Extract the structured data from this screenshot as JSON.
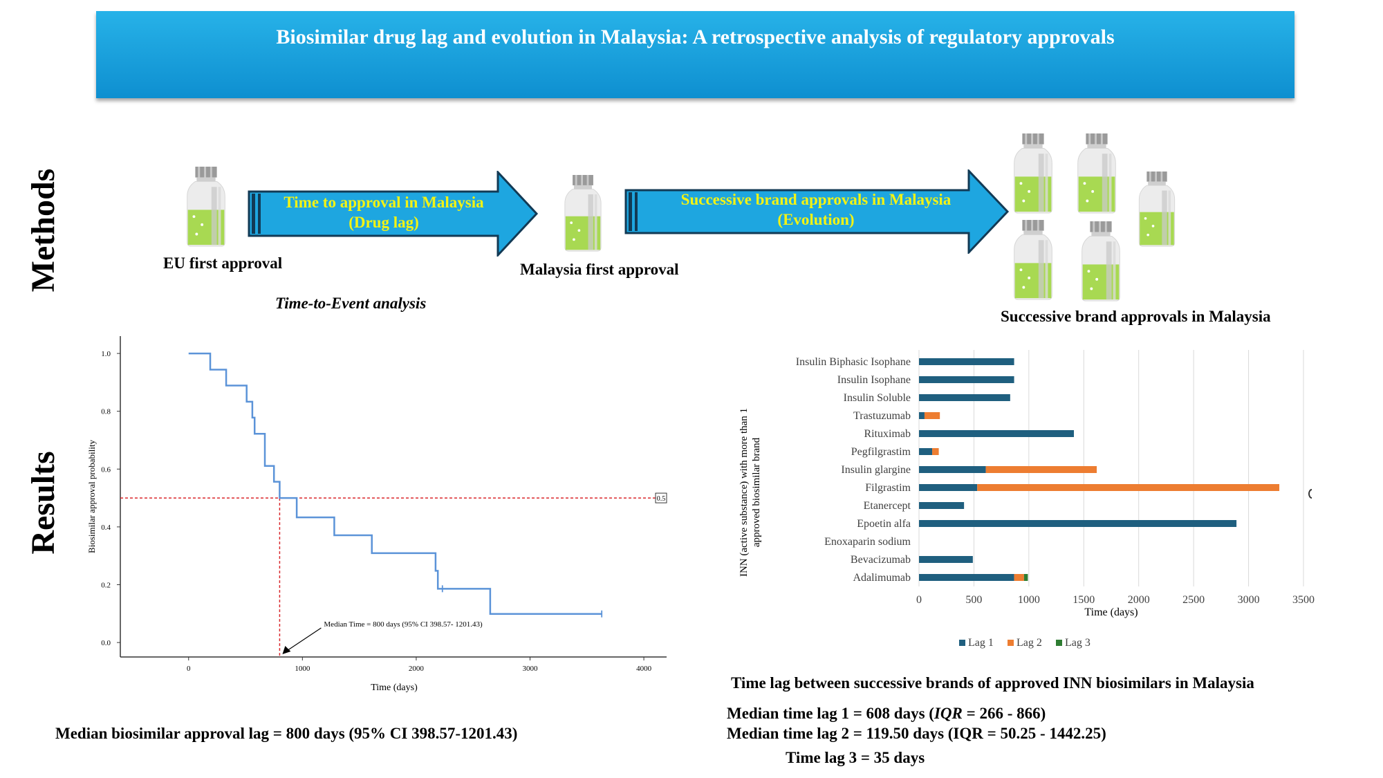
{
  "title": "Biosimilar drug lag and evolution in Malaysia: A retrospective analysis of regulatory approvals",
  "sections": {
    "methods": "Methods",
    "results": "Results"
  },
  "methods": {
    "arrow1": {
      "line1": "Time to approval in Malaysia",
      "line2": "(Drug lag)"
    },
    "arrow2": {
      "line1": "Successive brand approvals in Malaysia",
      "line2": "(Evolution)"
    },
    "eu_label": "EU first approval",
    "my_label": "Malaysia first approval",
    "successive_label": "Successive brand approvals in Malaysia",
    "analysis_label": "Time-to-Event analysis"
  },
  "colors": {
    "km_line": "#5b93d8",
    "lag1": "#1f5f7f",
    "lag2": "#ed7d31",
    "lag3": "#2e7d32",
    "ref_line": "#d9262a",
    "banner": "#1aa2dd",
    "arrow": "#1ea6e0"
  },
  "km_chart": {
    "type": "line",
    "xlabel": "Time (days)",
    "ylabel": "Biosimilar approval probability",
    "xlim": [
      -600,
      4200
    ],
    "ylim": [
      -0.05,
      1.06
    ],
    "xticks": [
      0,
      1000,
      2000,
      3000,
      4000
    ],
    "xtick_labels": [
      "0",
      "1000",
      "2000",
      "3000",
      "4000"
    ],
    "yticks": [
      0.0,
      0.2,
      0.4,
      0.6,
      0.8,
      1.0
    ],
    "ytick_labels": [
      "0.0",
      "0.2",
      "0.4",
      "0.6",
      "0.8",
      "1.0"
    ],
    "steps": [
      [
        0,
        1.0
      ],
      [
        190,
        0.944
      ],
      [
        330,
        0.889
      ],
      [
        510,
        0.833
      ],
      [
        560,
        0.778
      ],
      [
        580,
        0.722
      ],
      [
        670,
        0.611
      ],
      [
        750,
        0.556
      ],
      [
        800,
        0.5
      ],
      [
        950,
        0.433
      ],
      [
        1280,
        0.371
      ],
      [
        1610,
        0.309
      ],
      [
        2170,
        0.248
      ],
      [
        2190,
        0.186
      ],
      [
        2650,
        0.099
      ],
      [
        3630,
        0.099
      ]
    ],
    "censor_points": [
      [
        2230,
        0.186
      ],
      [
        3630,
        0.099
      ]
    ],
    "ref_y": 0.5,
    "ref_y_label": "0.5",
    "median_x": 800,
    "median_label": "Median Time = 800 days (95% CI 398.57- 1201.43)"
  },
  "lag_chart": {
    "type": "bar",
    "orientation": "horizontal",
    "stacked": true,
    "ylabel_line1": "INN (active substance) with more than 1",
    "ylabel_line2": "approved biosimilar brand",
    "xlabel": "Time (days)",
    "xlim": [
      0,
      3500
    ],
    "xticks": [
      0,
      500,
      1000,
      1500,
      2000,
      2500,
      3000,
      3500
    ],
    "xtick_labels": [
      "0",
      "500",
      "1000",
      "1500",
      "2000",
      "2500",
      "3000",
      "3500"
    ],
    "categories": [
      "Insulin Biphasic Isophane",
      "Insulin Isophane",
      "Insulin Soluble",
      "Trastuzumab",
      "Rituximab",
      "Pegfilgrastim",
      "Insulin glargine",
      "Filgrastim",
      "Etanercept",
      "Epoetin alfa",
      "Enoxaparin sodium",
      "Bevacizumab",
      "Adalimumab"
    ],
    "series": [
      {
        "name": "Lag 1",
        "values": [
          866,
          866,
          830,
          50,
          1410,
          120,
          608,
          530,
          410,
          2890,
          0,
          490,
          866
        ]
      },
      {
        "name": "Lag 2",
        "values": [
          0,
          0,
          0,
          140,
          0,
          60,
          1010,
          2750,
          0,
          0,
          0,
          0,
          90
        ]
      },
      {
        "name": "Lag 3",
        "values": [
          0,
          0,
          0,
          0,
          0,
          0,
          0,
          0,
          0,
          0,
          0,
          0,
          35
        ]
      }
    ],
    "caption": "Time lag between successive brands of approved INN biosimilars in Malaysia"
  },
  "stats": {
    "median_lag": "Median biosimilar approval lag = 800 days (95% CI  398.57-1201.43)",
    "lag1_prefix": "Median time lag 1 = 608 days (",
    "lag1_iqr": "IQR",
    "lag1_suffix": " = 266 - 866)",
    "lag2": "Median time lag 2 = 119.50 days (IQR = 50.25 - 1442.25)",
    "lag3": "Time lag 3 = 35 days"
  }
}
